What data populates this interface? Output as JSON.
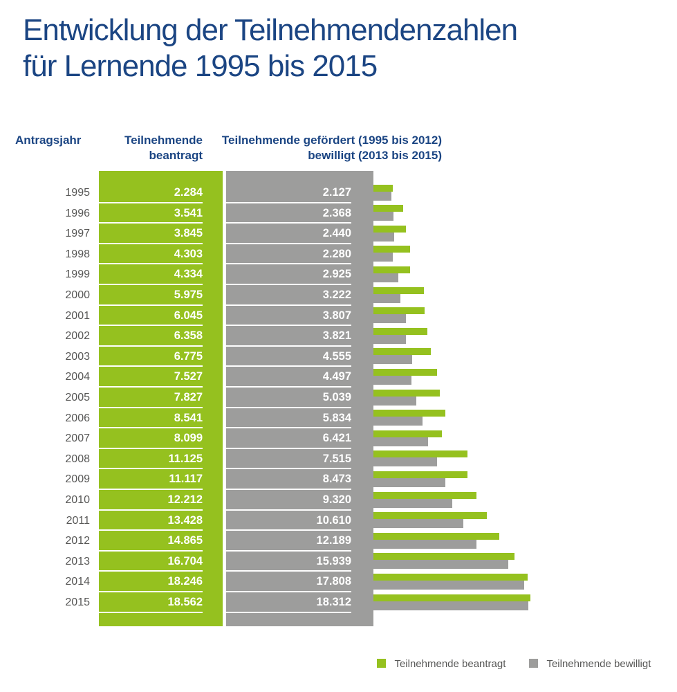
{
  "title": {
    "line1": "Entwicklung der Teilnehmendenzahlen",
    "line2": "für Lernende 1995 bis 2015"
  },
  "table_headers": {
    "year": "Antragsjahr",
    "green_line1": "Teilnehmende",
    "green_line2": "beantragt",
    "gray_line1": "Teilnehmende gefördert (1995 bis 2012)",
    "gray_line2": "bewilligt (2013 bis 2015)"
  },
  "legend": {
    "green_label": "Teilnehmende beantragt",
    "gray_label": "Teilnehmende bewilligt"
  },
  "colors": {
    "green": "#95c11f",
    "gray": "#9d9d9c",
    "title_blue": "#1b4583",
    "text_gray": "#575756",
    "value_text": "#ffffff"
  },
  "chart_data": {
    "type": "bar",
    "orientation": "horizontal",
    "title": "Entwicklung der Teilnehmendenzahlen für Lernende 1995 bis 2015",
    "categories": [
      1995,
      1996,
      1997,
      1998,
      1999,
      2000,
      2001,
      2002,
      2003,
      2004,
      2005,
      2006,
      2007,
      2008,
      2009,
      2010,
      2011,
      2012,
      2013,
      2014,
      2015
    ],
    "series": [
      {
        "name": "Teilnehmende beantragt",
        "color": "#95c11f",
        "values": [
          2284,
          3541,
          3845,
          4303,
          4334,
          5975,
          6045,
          6358,
          6775,
          7527,
          7827,
          8541,
          8099,
          11125,
          11117,
          12212,
          13428,
          14865,
          16704,
          18246,
          18562
        ]
      },
      {
        "name": "Teilnehmende gefördert (1995 bis 2012) / bewilligt (2013 bis 2015)",
        "color": "#9d9d9c",
        "values": [
          2127,
          2368,
          2440,
          2280,
          2925,
          3222,
          3807,
          3821,
          4555,
          4497,
          5039,
          5834,
          6421,
          7515,
          8473,
          9320,
          10610,
          12189,
          15939,
          17808,
          18312
        ]
      }
    ],
    "value_label_format": "thousands separated by dot (de-DE)",
    "xlim": [
      0,
      18562
    ],
    "legend_position": "bottom-right",
    "grid": false
  }
}
